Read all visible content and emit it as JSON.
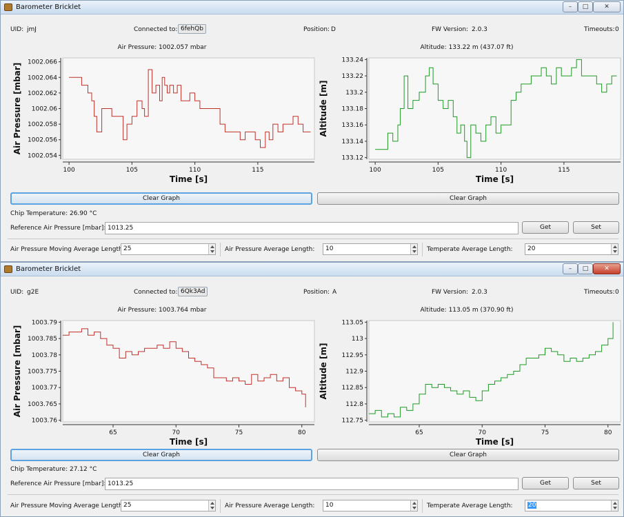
{
  "windows": [
    {
      "title": "Barometer Bricklet",
      "caption": {
        "min": "–",
        "max": "□",
        "close": "✕"
      },
      "uid_label": "UID:",
      "uid": "jmJ",
      "connected_label": "Connected to:",
      "connected": "6fehQb",
      "position_label": "Position:",
      "position": "D",
      "fw_label": "FW Version:",
      "fw": "2.0.3",
      "timeouts_label": "Timeouts:",
      "timeouts": "0",
      "pressure_title": "Air Pressure: 1002.057 mbar",
      "altitude_title": "Altitude: 133.22 m (437.07 ft)",
      "clear_graph": "Clear Graph",
      "chip_temp": "Chip Temperature: 26.90 °C",
      "ref_label": "Reference Air Pressure [mbar]:",
      "ref_value": "1013.25",
      "get": "Get",
      "set": "Set",
      "ma_label": "Air Pressure Moving Average Length:",
      "ma_value": "25",
      "avg_label": "Air Pressure Average Length:",
      "avg_value": "10",
      "temp_label": "Temperate Average Length:",
      "temp_value": "20"
    },
    {
      "title": "Barometer Bricklet",
      "caption": {
        "min": "–",
        "max": "□",
        "close": "✕"
      },
      "uid_label": "UID:",
      "uid": "g2E",
      "connected_label": "Connected to:",
      "connected": "6Qk3Ad",
      "position_label": "Position:",
      "position": "A",
      "fw_label": "FW Version:",
      "fw": "2.0.3",
      "timeouts_label": "Timeouts:",
      "timeouts": "0",
      "pressure_title": "Air Pressure: 1003.764 mbar",
      "altitude_title": "Altitude: 113.05 m (370.90 ft)",
      "clear_graph": "Clear Graph",
      "chip_temp": "Chip Temperature: 27.12 °C",
      "ref_label": "Reference Air Pressure [mbar]:",
      "ref_value": "1013.25",
      "get": "Get",
      "set": "Set",
      "ma_label": "Air Pressure Moving Average Length:",
      "ma_value": "25",
      "avg_label": "Air Pressure Average Length:",
      "avg_value": "10",
      "temp_label": "Temperate Average Length:",
      "temp_value": "20"
    }
  ],
  "colors": {
    "pressure": "#c0302a",
    "altitude": "#1e9a24"
  },
  "chart_data": [
    {
      "type": "line",
      "xlabel": "Time [s]",
      "ylabel": "Air Pressure [mbar]",
      "xlim": [
        99.5,
        119.5
      ],
      "ylim": [
        1002.0535,
        1002.0665
      ],
      "xticks": [
        100,
        105,
        110,
        115
      ],
      "yticks": [
        1002.054,
        1002.056,
        1002.058,
        1002.06,
        1002.062,
        1002.064,
        1002.066
      ],
      "series": [
        {
          "x": [
            100,
            100.8,
            101,
            101.3,
            101.5,
            101.8,
            102,
            102.2,
            102.6,
            103,
            103.4,
            104,
            104.3,
            104.6,
            105,
            105.4,
            105.8,
            106,
            106.3,
            106.6,
            106.9,
            107.2,
            107.4,
            107.6,
            107.8,
            108,
            108.3,
            108.6,
            108.9,
            109.2,
            109.6,
            110,
            110.4,
            110.8,
            111.2,
            111.6,
            112,
            112.4,
            112.8,
            113.2,
            113.6,
            114,
            114.4,
            114.8,
            115.2,
            115.6,
            115.9,
            116.2,
            116.6,
            117,
            117.4,
            117.8,
            118.2,
            118.6,
            119,
            119.2
          ],
          "y": [
            1002.064,
            1002.064,
            1002.063,
            1002.063,
            1002.062,
            1002.061,
            1002.059,
            1002.057,
            1002.06,
            1002.06,
            1002.059,
            1002.059,
            1002.056,
            1002.058,
            1002.059,
            1002.061,
            1002.06,
            1002.059,
            1002.065,
            1002.062,
            1002.063,
            1002.061,
            1002.064,
            1002.063,
            1002.062,
            1002.063,
            1002.062,
            1002.063,
            1002.061,
            1002.061,
            1002.062,
            1002.061,
            1002.06,
            1002.06,
            1002.06,
            1002.06,
            1002.058,
            1002.057,
            1002.057,
            1002.057,
            1002.056,
            1002.057,
            1002.057,
            1002.056,
            1002.055,
            1002.057,
            1002.056,
            1002.058,
            1002.057,
            1002.058,
            1002.058,
            1002.059,
            1002.058,
            1002.057,
            1002.057,
            1002.057
          ]
        }
      ]
    },
    {
      "type": "line",
      "xlabel": "Time [s]",
      "ylabel": "Altitude [m]",
      "xlim": [
        99.5,
        119.5
      ],
      "ylim": [
        133.118,
        133.242
      ],
      "xticks": [
        100,
        105,
        110,
        115
      ],
      "yticks": [
        133.12,
        133.14,
        133.16,
        133.18,
        133.2,
        133.22,
        133.24
      ],
      "series": [
        {
          "x": [
            100,
            100.6,
            101,
            101.4,
            101.8,
            102,
            102.3,
            102.6,
            103,
            103.5,
            104,
            104.3,
            104.6,
            105,
            105.4,
            105.8,
            106.2,
            106.5,
            106.8,
            107.1,
            107.3,
            107.6,
            108,
            108.4,
            108.8,
            109.2,
            109.6,
            110,
            110.4,
            110.8,
            111.2,
            111.6,
            112,
            112.4,
            112.8,
            113.2,
            113.6,
            114,
            114.4,
            114.8,
            115.2,
            115.6,
            116,
            116.4,
            116.8,
            117.2,
            117.6,
            118,
            118.4,
            118.8,
            119.2
          ],
          "y": [
            133.13,
            133.13,
            133.15,
            133.14,
            133.16,
            133.18,
            133.22,
            133.18,
            133.19,
            133.2,
            133.22,
            133.23,
            133.21,
            133.19,
            133.18,
            133.19,
            133.17,
            133.15,
            133.16,
            133.14,
            133.12,
            133.16,
            133.15,
            133.14,
            133.16,
            133.17,
            133.15,
            133.16,
            133.16,
            133.19,
            133.2,
            133.21,
            133.21,
            133.22,
            133.22,
            133.23,
            133.22,
            133.21,
            133.23,
            133.22,
            133.22,
            133.23,
            133.24,
            133.22,
            133.22,
            133.22,
            133.21,
            133.2,
            133.21,
            133.22,
            133.22
          ]
        }
      ]
    },
    {
      "type": "line",
      "xlabel": "Time [s]",
      "ylabel": "Air Pressure [mbar]",
      "xlim": [
        61,
        81
      ],
      "ylim": [
        1003.7595,
        1003.7905
      ],
      "xticks": [
        65,
        70,
        75,
        80
      ],
      "yticks": [
        1003.76,
        1003.765,
        1003.77,
        1003.775,
        1003.78,
        1003.785,
        1003.79
      ],
      "series": [
        {
          "x": [
            61,
            61.5,
            62,
            62.5,
            63,
            63.5,
            64,
            64.5,
            65,
            65.5,
            66,
            66.5,
            67,
            67.5,
            68,
            68.5,
            69,
            69.5,
            70,
            70.5,
            71,
            71.5,
            72,
            72.5,
            73,
            73.5,
            74,
            74.5,
            75,
            75.5,
            76,
            76.5,
            77,
            77.5,
            78,
            78.5,
            79,
            79.5,
            80,
            80.3
          ],
          "y": [
            1003.786,
            1003.787,
            1003.787,
            1003.788,
            1003.786,
            1003.787,
            1003.785,
            1003.783,
            1003.782,
            1003.779,
            1003.781,
            1003.78,
            1003.781,
            1003.782,
            1003.782,
            1003.783,
            1003.782,
            1003.784,
            1003.782,
            1003.781,
            1003.779,
            1003.778,
            1003.777,
            1003.776,
            1003.773,
            1003.773,
            1003.772,
            1003.773,
            1003.772,
            1003.771,
            1003.774,
            1003.772,
            1003.773,
            1003.774,
            1003.772,
            1003.773,
            1003.77,
            1003.769,
            1003.768,
            1003.764
          ]
        }
      ]
    },
    {
      "type": "line",
      "xlabel": "Time [s]",
      "ylabel": "Altitude [m]",
      "xlim": [
        61,
        81
      ],
      "ylim": [
        112.745,
        113.055
      ],
      "xticks": [
        65,
        70,
        75,
        80
      ],
      "yticks": [
        112.75,
        112.8,
        112.85,
        112.9,
        112.95,
        113.0,
        113.05
      ],
      "series": [
        {
          "x": [
            61,
            61.5,
            62,
            62.5,
            63,
            63.5,
            64,
            64.5,
            65,
            65.5,
            66,
            66.5,
            67,
            67.5,
            68,
            68.5,
            69,
            69.5,
            70,
            70.5,
            71,
            71.5,
            72,
            72.5,
            73,
            73.5,
            74,
            74.5,
            75,
            75.5,
            76,
            76.5,
            77,
            77.5,
            78,
            78.5,
            79,
            79.5,
            80,
            80.4
          ],
          "y": [
            112.77,
            112.78,
            112.76,
            112.77,
            112.76,
            112.79,
            112.78,
            112.8,
            112.83,
            112.86,
            112.85,
            112.86,
            112.85,
            112.84,
            112.83,
            112.84,
            112.82,
            112.81,
            112.84,
            112.86,
            112.87,
            112.88,
            112.89,
            112.9,
            112.92,
            112.94,
            112.94,
            112.95,
            112.97,
            112.96,
            112.95,
            112.93,
            112.94,
            112.93,
            112.94,
            112.95,
            112.96,
            112.98,
            113.0,
            113.05
          ]
        }
      ]
    }
  ]
}
